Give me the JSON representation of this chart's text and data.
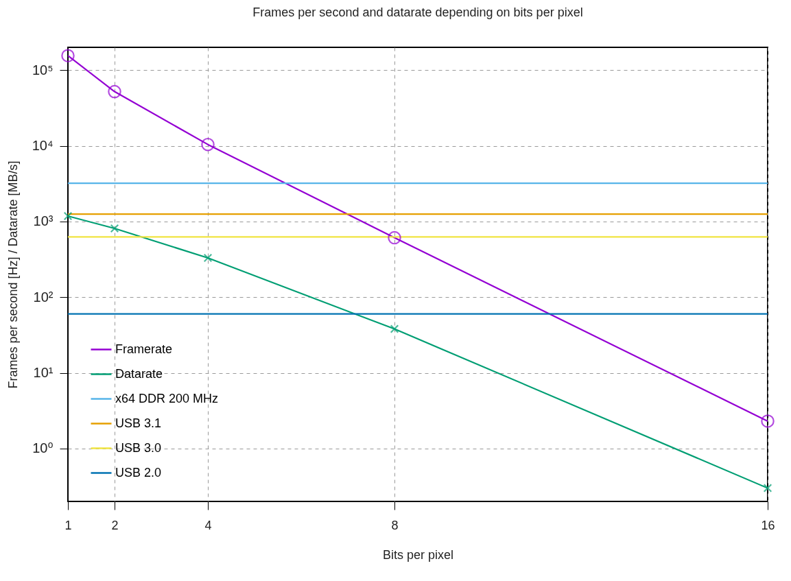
{
  "chart_data": {
    "type": "line",
    "title": "Frames per second and datarate depending on bits per pixel",
    "xlabel": "Bits per pixel",
    "ylabel": "Frames per second [Hz] / Datarate [MB/s]",
    "x": [
      1,
      2,
      4,
      8,
      16
    ],
    "series": [
      {
        "name": "Framerate",
        "color": "#9400d3",
        "marker": "circle",
        "values": [
          155000,
          52000,
          10400,
          610,
          2.3
        ]
      },
      {
        "name": "Datarate",
        "color": "#009e73",
        "marker": "cross",
        "values": [
          1180,
          810,
          330,
          38,
          0.3
        ]
      }
    ],
    "ref_lines": [
      {
        "axis": "y",
        "value": 3200,
        "label": "x64 DDR 200 MHz",
        "color": "#56b4e9"
      },
      {
        "axis": "y",
        "value": 1250,
        "label": "USB 3.1",
        "color": "#e69f00"
      },
      {
        "axis": "y",
        "value": 625,
        "label": "USB 3.0",
        "color": "#f0e442"
      },
      {
        "axis": "y",
        "value": 60,
        "label": "USB 2.0",
        "color": "#0072b2"
      }
    ],
    "log": "y",
    "xlim": [
      1,
      16
    ],
    "xticks": [
      1,
      2,
      4,
      8,
      16
    ],
    "ylim": [
      0.2,
      200000
    ],
    "yticks": [
      {
        "value": 1,
        "label": "10⁰"
      },
      {
        "value": 10,
        "label": "10¹"
      },
      {
        "value": 100,
        "label": "10²"
      },
      {
        "value": 1000,
        "label": "10³"
      },
      {
        "value": 10000,
        "label": "10⁴"
      },
      {
        "value": 100000,
        "label": "10⁵"
      }
    ],
    "grid": true,
    "legend": "bottom left",
    "line_style": "solid"
  }
}
